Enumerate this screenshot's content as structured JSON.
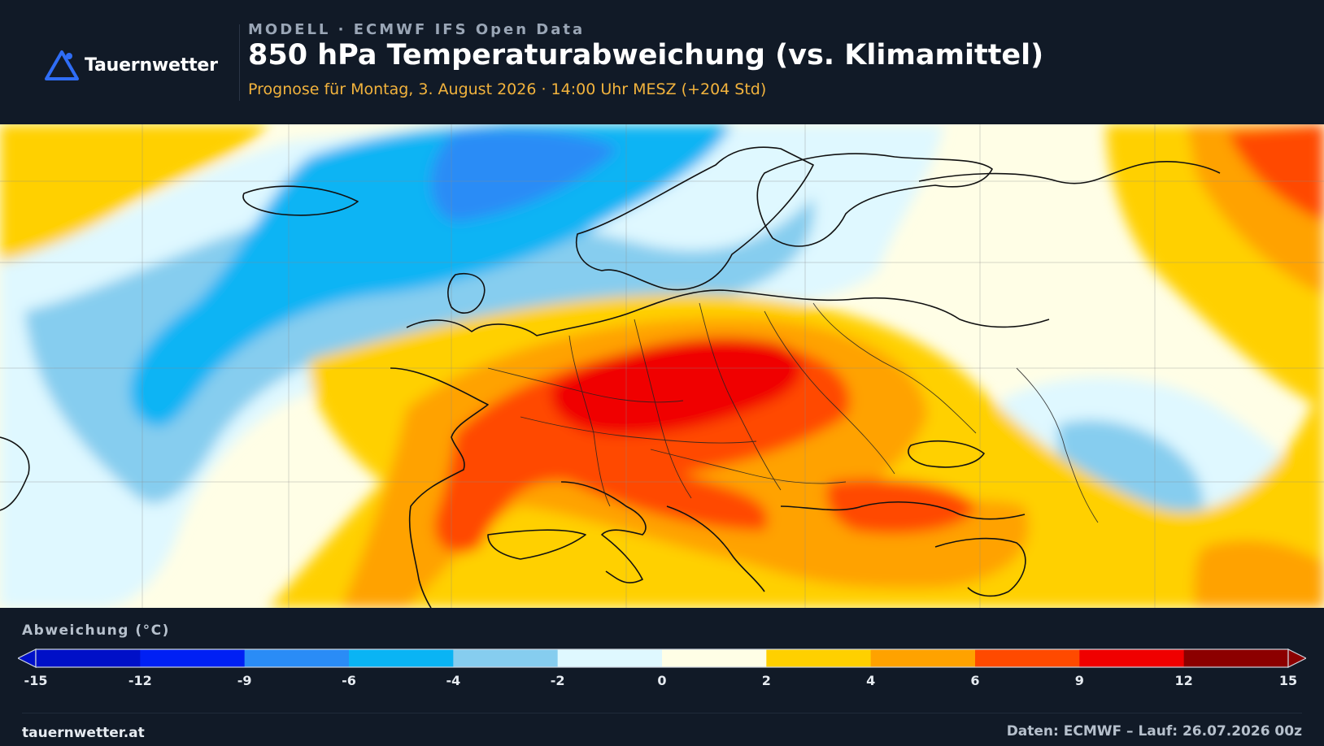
{
  "brand": {
    "name": "Tauernwetter",
    "logo_icon": "mountain-triangle-icon",
    "accent": "#2f6df6"
  },
  "header": {
    "kicker": "MODELL · ECMWF IFS Open Data",
    "title": "850 hPa Temperaturabweichung (vs. Klimamittel)",
    "subtitle": "Prognose für Montag, 3. August 2026 · 14:00 Uhr MESZ  (+204 Std)"
  },
  "legend": {
    "title": "Abweichung (°C)",
    "ticks": [
      "-15",
      "-12",
      "-9",
      "-6",
      "-4",
      "-2",
      "0",
      "2",
      "4",
      "6",
      "9",
      "12",
      "15"
    ],
    "bins": [
      {
        "from": -15,
        "to": -12,
        "color": "#0010c8"
      },
      {
        "from": -12,
        "to": -9,
        "color": "#0020f4"
      },
      {
        "from": -9,
        "to": -6,
        "color": "#2a8cf6"
      },
      {
        "from": -6,
        "to": -4,
        "color": "#0ab4f4"
      },
      {
        "from": -4,
        "to": -2,
        "color": "#86cdef"
      },
      {
        "from": -2,
        "to": 0,
        "color": "#dff8ff"
      },
      {
        "from": 0,
        "to": 2,
        "color": "#fffee6"
      },
      {
        "from": 2,
        "to": 4,
        "color": "#ffd000"
      },
      {
        "from": 4,
        "to": 6,
        "color": "#ffa200"
      },
      {
        "from": 6,
        "to": 9,
        "color": "#ff4a00"
      },
      {
        "from": 9,
        "to": 12,
        "color": "#f00000"
      },
      {
        "from": 12,
        "to": 15,
        "color": "#8c0000"
      }
    ],
    "under_color": "#0010c8",
    "over_color": "#8c0000"
  },
  "footer": {
    "site": "tauernwetter.at",
    "source": "Daten: ECMWF – Lauf: 26.07.2026 00z"
  }
}
